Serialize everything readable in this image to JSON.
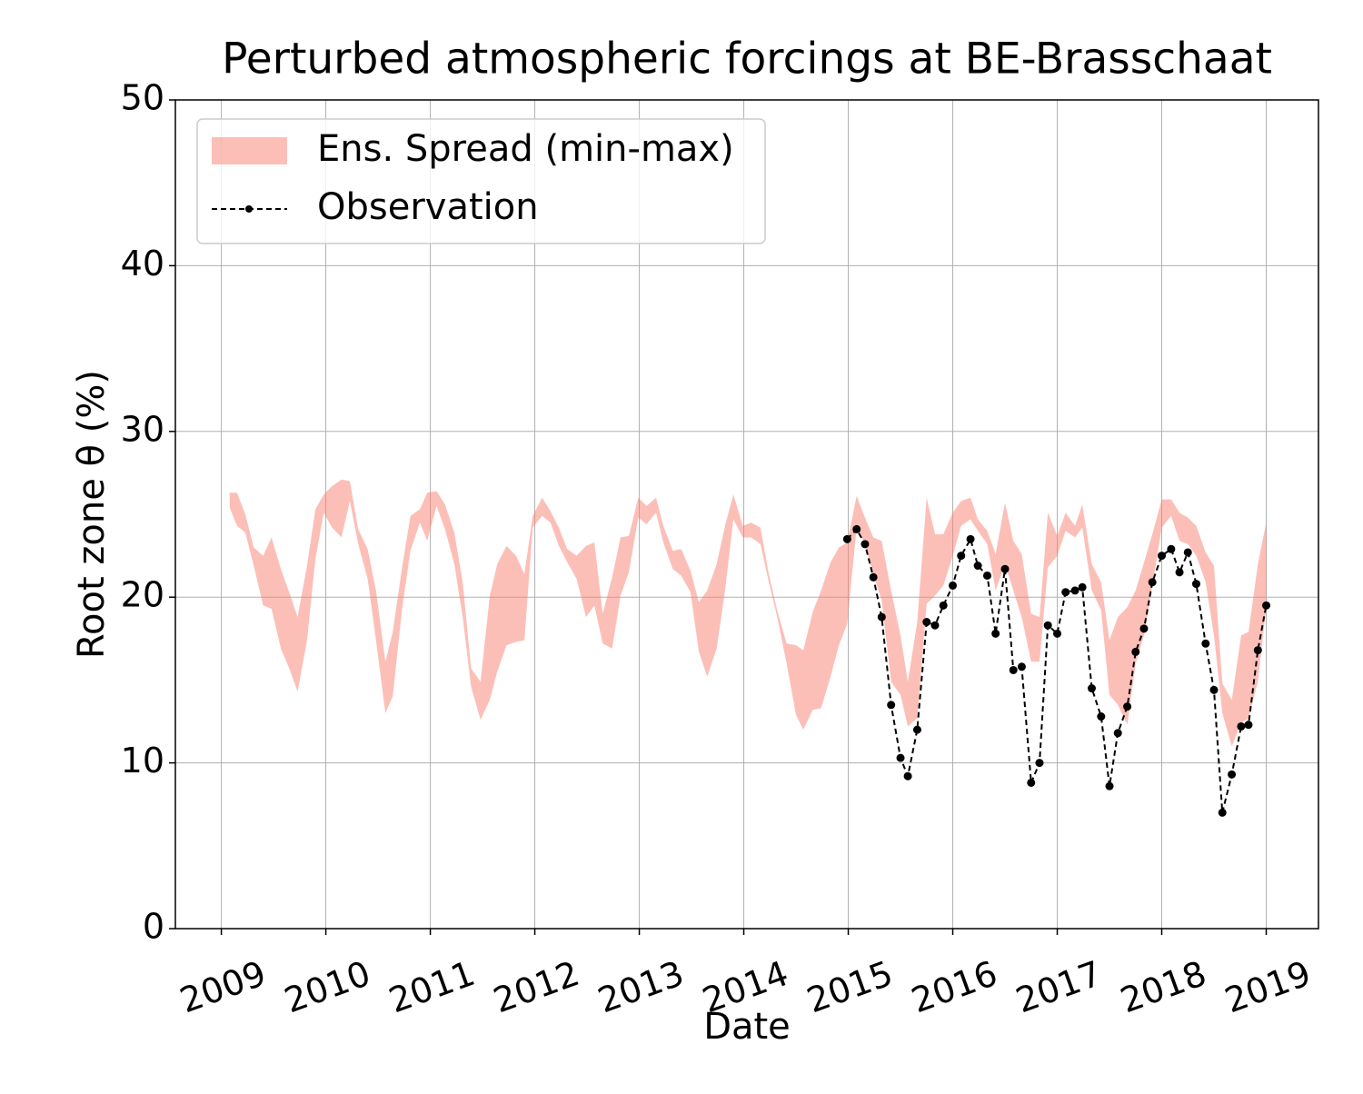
{
  "chart_data": {
    "type": "line",
    "title": "Perturbed atmospheric forcings at BE-Brasschaat",
    "x_label": "Date",
    "y_label": "Root zone θ  (%)",
    "xlim": [
      2008.56,
      2019.5
    ],
    "ylim": [
      0,
      50
    ],
    "xticks": [
      2009,
      2010,
      2011,
      2012,
      2013,
      2014,
      2015,
      2016,
      2017,
      2018,
      2019
    ],
    "yticks": [
      0,
      10,
      20,
      30,
      40,
      50
    ],
    "grid": true,
    "legend": "upper left",
    "x": [
      2009.08,
      2009.15,
      2009.23,
      2009.31,
      2009.4,
      2009.48,
      2009.57,
      2009.65,
      2009.73,
      2009.82,
      2009.9,
      2009.98,
      2010.06,
      2010.15,
      2010.23,
      2010.31,
      2010.4,
      2010.48,
      2010.57,
      2010.64,
      2010.73,
      2010.81,
      2010.9,
      2010.97,
      2011.06,
      2011.14,
      2011.23,
      2011.31,
      2011.39,
      2011.48,
      2011.57,
      2011.64,
      2011.73,
      2011.82,
      2011.9,
      2011.98,
      2012.07,
      2012.15,
      2012.23,
      2012.31,
      2012.4,
      2012.49,
      2012.57,
      2012.65,
      2012.74,
      2012.82,
      2012.9,
      2012.99,
      2013.07,
      2013.16,
      2013.23,
      2013.32,
      2013.4,
      2013.49,
      2013.57,
      2013.65,
      2013.74,
      2013.82,
      2013.9,
      2013.99,
      2014.07,
      2014.16,
      2014.24,
      2014.32,
      2014.41,
      2014.5,
      2014.57,
      2014.66,
      2014.74,
      2014.83,
      2014.91,
      2014.99,
      2015.08,
      2015.16,
      2015.24,
      2015.32,
      2015.41,
      2015.5,
      2015.57,
      2015.66,
      2015.75,
      2015.83,
      2015.91,
      2016.0,
      2016.08,
      2016.17,
      2016.24,
      2016.33,
      2016.41,
      2016.5,
      2016.58,
      2016.66,
      2016.75,
      2016.83,
      2016.91,
      2017.0,
      2017.08,
      2017.17,
      2017.24,
      2017.33,
      2017.42,
      2017.5,
      2017.58,
      2017.67,
      2017.75,
      2017.83,
      2017.91,
      2018.0,
      2018.09,
      2018.17,
      2018.25,
      2018.33,
      2018.42,
      2018.5,
      2018.58,
      2018.67,
      2018.76,
      2018.83,
      2018.92,
      2019.0
    ],
    "series": [
      {
        "name": "Ens. Spread (min-max)",
        "color": "#fa8072",
        "opacity": 0.5,
        "style": "band",
        "upper": [
          26.3,
          26.3,
          25.0,
          23.0,
          22.5,
          23.6,
          21.7,
          20.3,
          18.8,
          21.9,
          25.3,
          26.2,
          26.7,
          27.1,
          27.0,
          24.1,
          22.9,
          20.4,
          16.1,
          17.9,
          21.8,
          24.9,
          25.3,
          26.3,
          26.4,
          25.6,
          23.9,
          20.9,
          15.7,
          14.9,
          20.1,
          22.0,
          23.1,
          22.5,
          21.4,
          24.9,
          26.0,
          25.2,
          24.2,
          22.9,
          22.5,
          23.1,
          23.3,
          19.0,
          21.2,
          23.6,
          23.7,
          26.0,
          25.5,
          26.0,
          24.3,
          22.8,
          22.9,
          21.6,
          19.7,
          20.4,
          22.0,
          24.3,
          26.2,
          24.3,
          24.5,
          24.2,
          21.4,
          19.2,
          17.2,
          17.1,
          16.8,
          19.1,
          20.4,
          22.1,
          23.0,
          23.3,
          26.1,
          24.8,
          23.6,
          23.4,
          20.4,
          17.7,
          14.9,
          18.5,
          26.0,
          23.8,
          23.8,
          25.1,
          25.8,
          26.0,
          24.7,
          24.0,
          22.6,
          25.7,
          23.4,
          22.6,
          19.0,
          18.8,
          25.1,
          23.7,
          25.1,
          24.3,
          25.6,
          22.0,
          20.9,
          17.4,
          18.8,
          19.4,
          20.4,
          22.1,
          23.8,
          25.9,
          25.9,
          25.1,
          24.8,
          24.3,
          22.7,
          21.9,
          14.8,
          13.8,
          17.7,
          17.9,
          22.0,
          24.5
        ],
        "lower": [
          25.4,
          24.3,
          23.9,
          21.9,
          19.5,
          19.3,
          16.9,
          15.7,
          14.3,
          17.4,
          22.3,
          25.1,
          24.2,
          23.6,
          25.8,
          23.2,
          21.1,
          17.4,
          13.0,
          14.0,
          19.3,
          22.8,
          24.5,
          23.4,
          25.5,
          24.1,
          22.0,
          18.8,
          14.6,
          12.6,
          13.8,
          15.5,
          17.1,
          17.3,
          17.4,
          24.2,
          24.9,
          24.5,
          23.1,
          22.1,
          21.1,
          18.8,
          19.5,
          17.2,
          16.9,
          20.1,
          21.5,
          24.8,
          24.4,
          25.1,
          23.3,
          21.7,
          21.3,
          20.3,
          16.7,
          15.2,
          16.9,
          20.4,
          24.7,
          23.6,
          23.6,
          23.2,
          20.9,
          18.8,
          16.0,
          12.9,
          12.0,
          13.2,
          13.3,
          15.2,
          17.1,
          18.4,
          24.2,
          23.2,
          21.4,
          19.8,
          14.9,
          14.1,
          12.2,
          12.7,
          19.6,
          20.1,
          20.7,
          22.5,
          24.3,
          24.7,
          24.0,
          23.2,
          20.4,
          22.0,
          20.4,
          18.8,
          16.1,
          16.1,
          21.8,
          22.5,
          24.0,
          23.6,
          24.2,
          20.4,
          19.2,
          14.1,
          13.5,
          12.3,
          16.0,
          17.7,
          20.7,
          24.2,
          24.9,
          23.4,
          23.2,
          22.5,
          20.9,
          17.7,
          13.0,
          11.0,
          12.4,
          12.7,
          14.9,
          19.4
        ]
      },
      {
        "name": "Observation",
        "color": "#000000",
        "style": "dashed-markers",
        "x": [
          2014.99,
          2015.08,
          2015.16,
          2015.24,
          2015.32,
          2015.41,
          2015.5,
          2015.57,
          2015.66,
          2015.75,
          2015.83,
          2015.91,
          2016.0,
          2016.08,
          2016.17,
          2016.24,
          2016.33,
          2016.41,
          2016.5,
          2016.58,
          2016.66,
          2016.75,
          2016.83,
          2016.91,
          2017.0,
          2017.08,
          2017.17,
          2017.24,
          2017.33,
          2017.42,
          2017.5,
          2017.58,
          2017.67,
          2017.75,
          2017.83,
          2017.91,
          2018.0,
          2018.09,
          2018.17,
          2018.25,
          2018.33,
          2018.42,
          2018.5,
          2018.58,
          2018.67,
          2018.76,
          2018.83,
          2018.92,
          2019.0
        ],
        "values": [
          23.5,
          24.1,
          23.2,
          21.2,
          18.8,
          13.5,
          10.3,
          9.2,
          12.0,
          18.5,
          18.3,
          19.5,
          20.7,
          22.5,
          23.5,
          21.9,
          21.3,
          17.8,
          21.7,
          15.6,
          15.8,
          8.8,
          10.0,
          18.3,
          17.8,
          20.3,
          20.4,
          20.6,
          14.5,
          12.8,
          8.6,
          11.8,
          13.4,
          16.7,
          18.1,
          20.9,
          22.5,
          22.9,
          21.5,
          22.7,
          20.8,
          17.2,
          14.4,
          7.0,
          9.3,
          12.2,
          12.3,
          16.8,
          19.5
        ]
      }
    ]
  }
}
